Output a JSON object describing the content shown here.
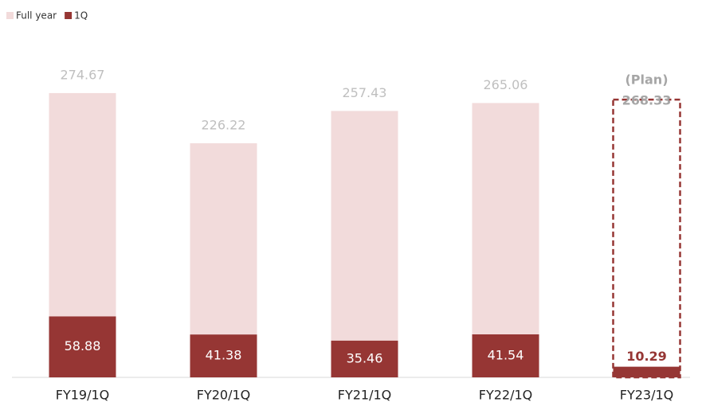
{
  "chart_data": {
    "type": "bar",
    "categories": [
      "FY19/1Q",
      "FY20/1Q",
      "FY21/1Q",
      "FY22/1Q",
      "FY23/1Q"
    ],
    "series": [
      {
        "name": "Full year",
        "color": "#f2dbdb",
        "values": [
          274.67,
          226.22,
          257.43,
          265.06,
          268.33
        ]
      },
      {
        "name": "1Q",
        "color": "#963634",
        "values": [
          58.88,
          41.38,
          35.46,
          41.54,
          10.29
        ]
      }
    ],
    "annotation": "(Plan)"
  }
}
